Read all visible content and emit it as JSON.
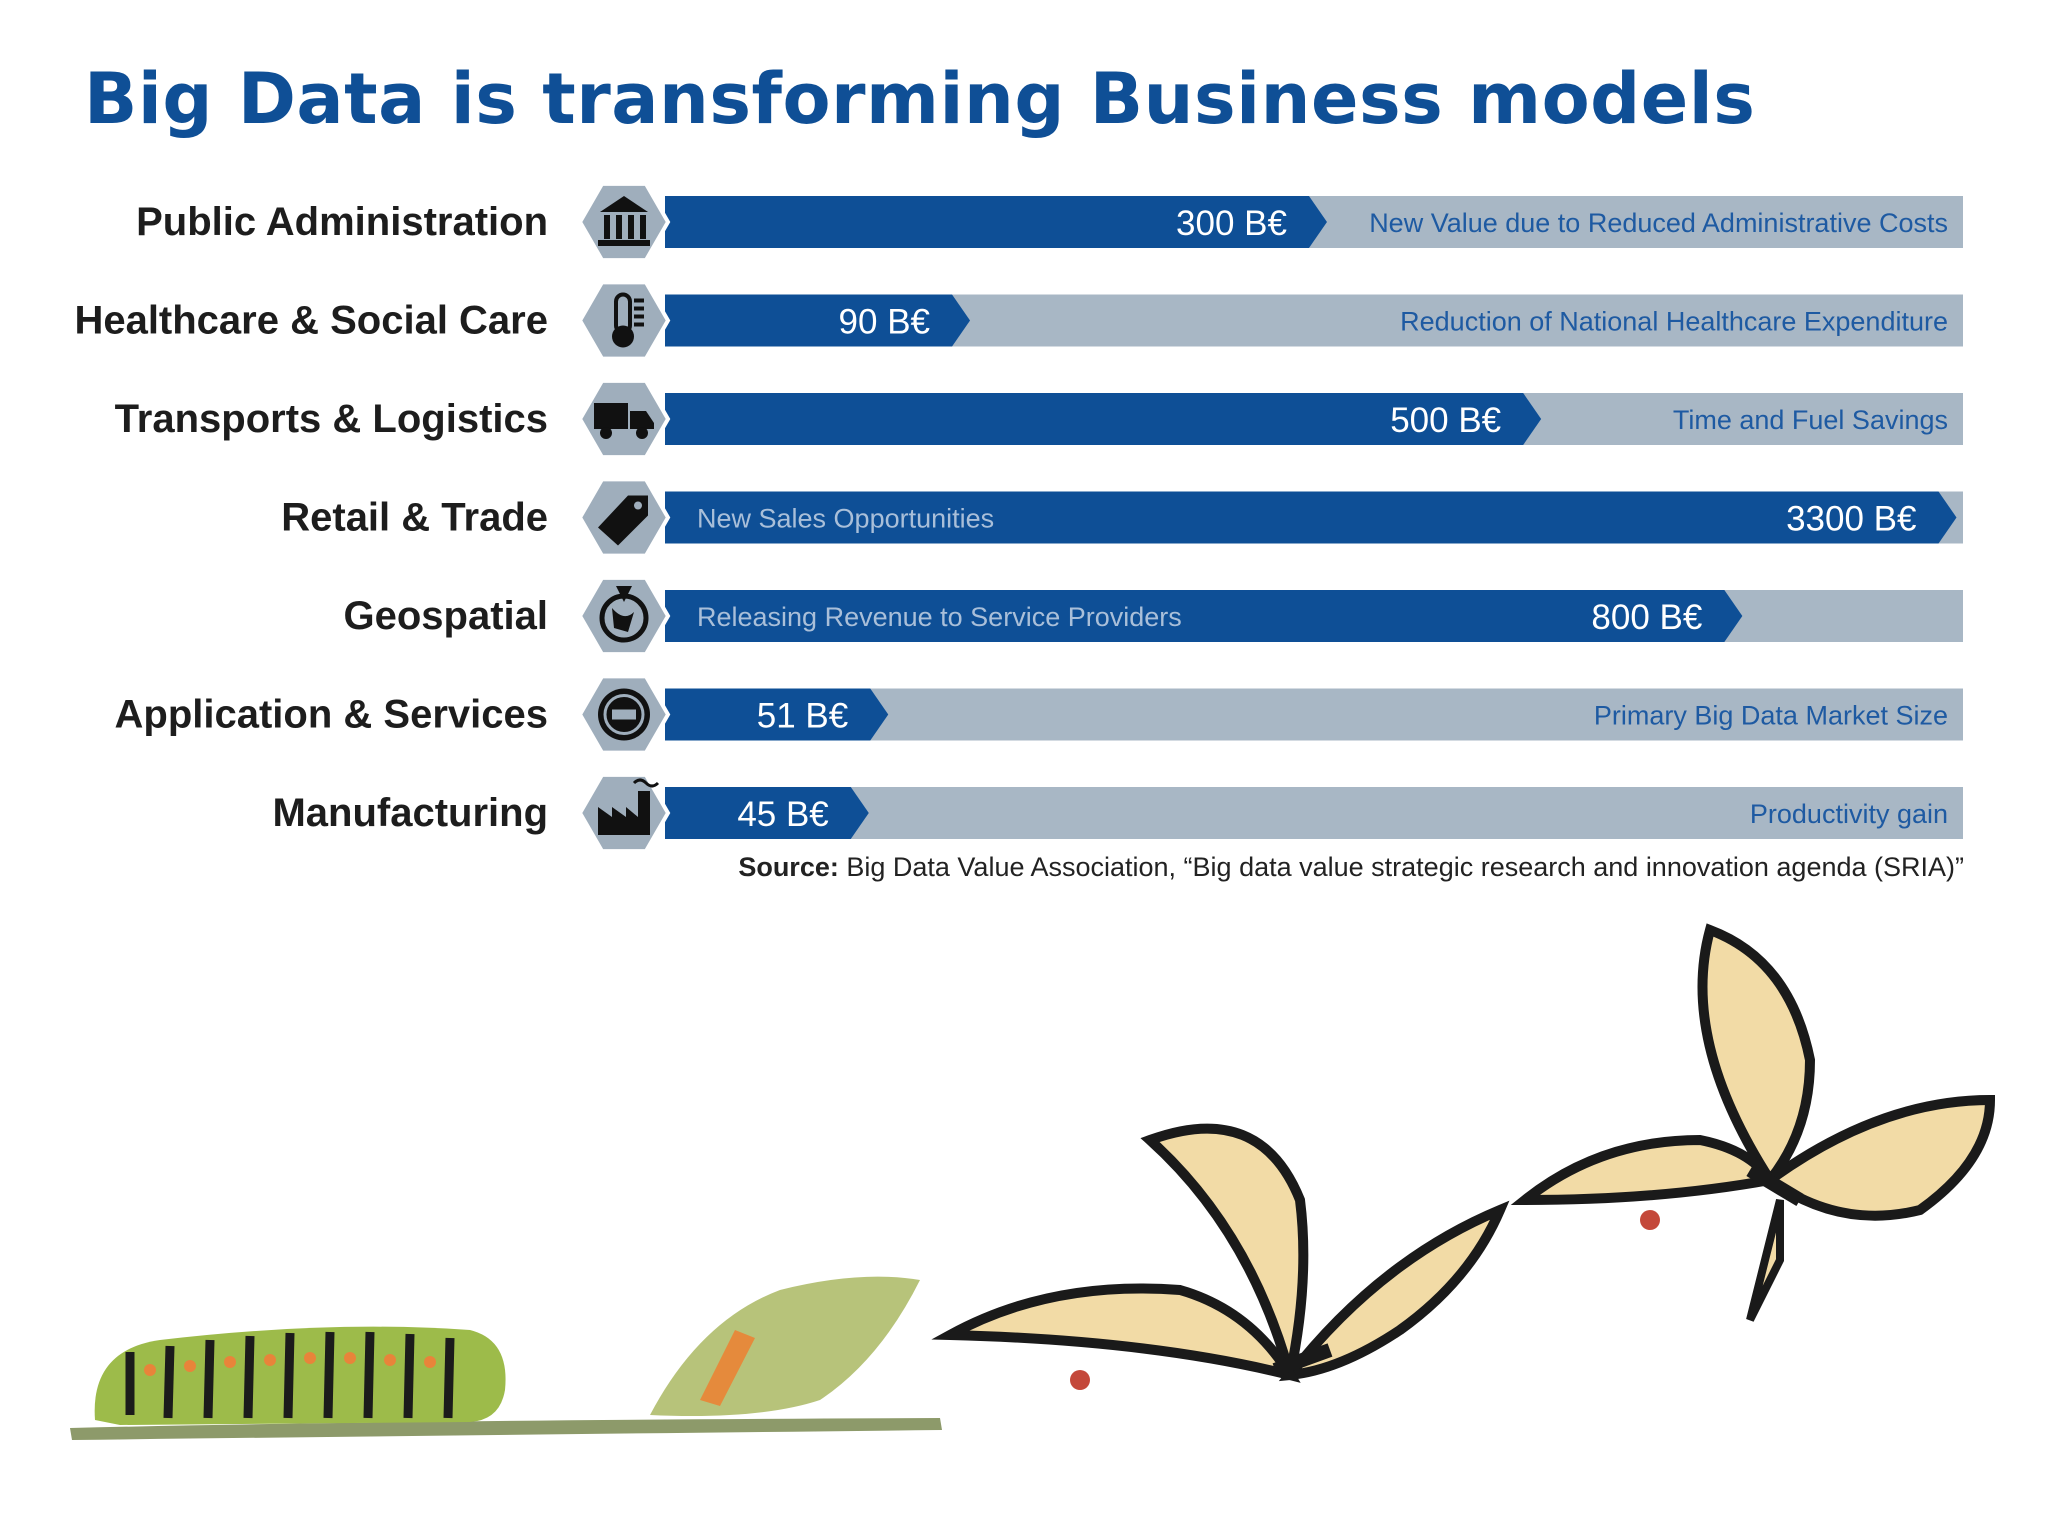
{
  "title": "Big Data is transforming Business models",
  "colors": {
    "title": "#0f4f96",
    "bar_fill": "#0e4f96",
    "track": "#a8b7c5",
    "hexagon": "#9faebc",
    "desc_on_track": "#1e5aa2",
    "desc_on_bar": "#a9bfd9"
  },
  "chart_data": {
    "type": "bar",
    "orientation": "horizontal",
    "categories": [
      "Public Administration",
      "Healthcare & Social Care",
      "Transports & Logistics",
      "Retail & Trade",
      "Geospatial",
      "Application & Services",
      "Manufacturing"
    ],
    "values": [
      300,
      90,
      500,
      3300,
      800,
      51,
      45
    ],
    "value_labels": [
      "300 B€",
      "90 B€",
      "500 B€",
      "3300 B€",
      "800 B€",
      "51 B€",
      "45 B€"
    ],
    "fill_fraction": [
      0.51,
      0.235,
      0.675,
      0.995,
      0.83,
      0.172,
      0.157
    ],
    "descriptions": [
      "New Value due to Reduced Administrative Costs",
      "Reduction of National Healthcare Expenditure",
      "Time and Fuel Savings",
      "New Sales Opportunities",
      "Releasing Revenue to Service Providers",
      "Primary Big Data Market Size",
      "Productivity gain"
    ],
    "description_position": [
      "track",
      "track",
      "track",
      "bar",
      "bar",
      "track",
      "track"
    ],
    "icons": [
      "bank-icon",
      "thermometer-icon",
      "truck-icon",
      "price-tag-icon",
      "globe-icon",
      "sale-badge-icon",
      "factory-icon"
    ]
  },
  "source": {
    "label": "Source:",
    "text": "Big Data Value Association, “Big data value strategic research and innovation agenda (SRIA)”"
  },
  "illustration": "caterpillar-to-butterfly-metamorphosis"
}
